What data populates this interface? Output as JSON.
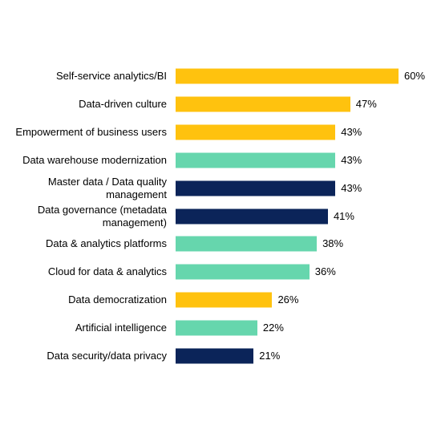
{
  "chart_data": {
    "type": "bar",
    "orientation": "horizontal",
    "title": "",
    "xlabel": "",
    "ylabel": "",
    "xlim": [
      0,
      60
    ],
    "grid": false,
    "legend": "none",
    "categories": [
      "Self-service analytics/BI",
      "Data-driven culture",
      "Empowerment of business users",
      "Data warehouse modernization",
      "Master data / Data quality\nmanagement",
      "Data governance (metadata\nmanagement)",
      "Data & analytics platforms",
      "Cloud for data & analytics",
      "Data democratization",
      "Artificial intelligence",
      "Data security/data privacy"
    ],
    "values": [
      60,
      47,
      43,
      43,
      43,
      41,
      38,
      36,
      26,
      22,
      21
    ],
    "value_labels": [
      "60%",
      "47%",
      "43%",
      "43%",
      "43%",
      "41%",
      "38%",
      "36%",
      "26%",
      "22%",
      "21%"
    ],
    "colors": [
      "#FFC20E",
      "#FFC20E",
      "#FFC20E",
      "#66D6AD",
      "#0B2459",
      "#0B2459",
      "#66D6AD",
      "#66D6AD",
      "#FFC20E",
      "#66D6AD",
      "#0B2459"
    ]
  }
}
